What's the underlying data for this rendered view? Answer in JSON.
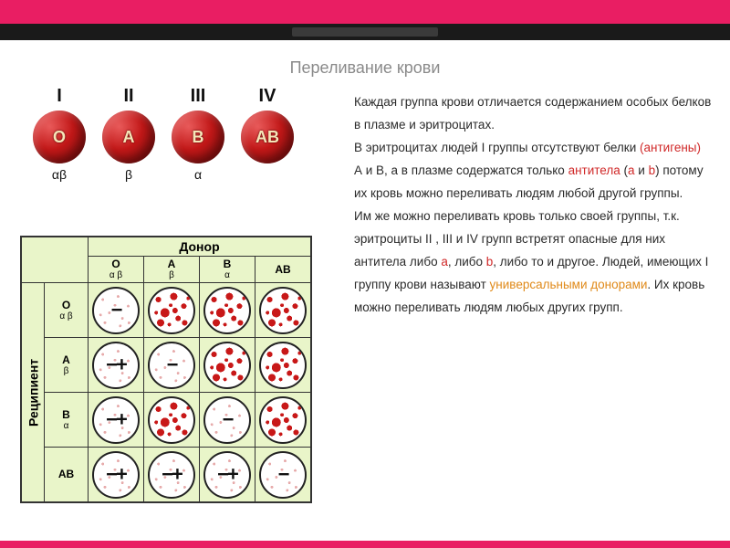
{
  "accent_color": "#e91e63",
  "title": "Переливание крови",
  "blood_cells": [
    {
      "roman": "I",
      "antigen": "O",
      "greek": "αβ"
    },
    {
      "roman": "II",
      "antigen": "A",
      "greek": "β"
    },
    {
      "roman": "III",
      "antigen": "B",
      "greek": "α"
    },
    {
      "roman": "IV",
      "antigen": "AB",
      "greek": ""
    }
  ],
  "matrix": {
    "donor_label": "Донор",
    "recipient_label": "Реципиент",
    "groups": [
      {
        "name": "O",
        "greek": "α β"
      },
      {
        "name": "A",
        "greek": "β"
      },
      {
        "name": "B",
        "greek": "α"
      },
      {
        "name": "AB",
        "greek": ""
      }
    ],
    "cells": [
      [
        {
          "sign": "−",
          "agg": false
        },
        {
          "sign": "",
          "agg": true
        },
        {
          "sign": "",
          "agg": true
        },
        {
          "sign": "",
          "agg": true
        }
      ],
      [
        {
          "sign": "−+",
          "agg": false
        },
        {
          "sign": "−",
          "agg": false
        },
        {
          "sign": "",
          "agg": true
        },
        {
          "sign": "",
          "agg": true
        }
      ],
      [
        {
          "sign": "−+",
          "agg": false
        },
        {
          "sign": "",
          "agg": true
        },
        {
          "sign": "−",
          "agg": false
        },
        {
          "sign": "",
          "agg": true
        }
      ],
      [
        {
          "sign": "−+",
          "agg": false
        },
        {
          "sign": "−+",
          "agg": false
        },
        {
          "sign": "−+",
          "agg": false
        },
        {
          "sign": "−",
          "agg": false
        }
      ]
    ],
    "bg_color": "#e9f5c9",
    "agglut_color": "#c81818",
    "border_color": "#333333"
  },
  "text": {
    "p1a": "Каждая группа крови отличается содержанием особых белков в плазме и эритроцитах.",
    "p2a": "В эритроцитах людей I группы отсутствуют белки ",
    "p2b": "(антигены)",
    "p2c": " А и В, а в плазме содержатся только ",
    "p2d": "антитела",
    "p2e": " (",
    "p2f": "а",
    "p2g": " и ",
    "p2h": "b",
    "p2i": ") потому их кровь можно переливать людям любой другой группы.",
    "p3a": "Им же можно переливать кровь только своей группы, т.к. эритроциты II , III и IV групп встретят опасные для них антитела либо ",
    "p3b": "а",
    "p3c": ", либо ",
    "p3d": "b",
    "p3e": ", либо то и другое. Людей, имеющих I группу крови называют ",
    "p3f": "универсальными донорами",
    "p3g": ". Их кровь можно переливать людям любых других групп."
  },
  "colors": {
    "text_gray": "#8a8a8a",
    "hl_red": "#d02828",
    "hl_orange": "#e08a1a",
    "rbc_gradient": [
      "#e85a5a",
      "#c21818",
      "#7a0c0c"
    ],
    "rbc_text": "#f5e6b8"
  }
}
